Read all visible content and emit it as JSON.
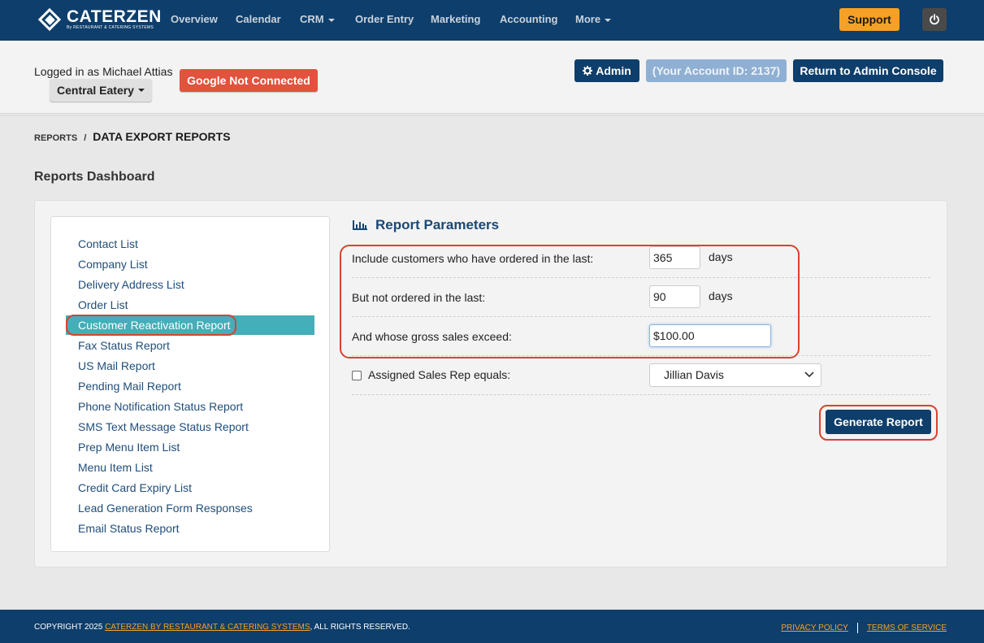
{
  "brand": {
    "name": "CaterZen",
    "sub": "By RESTAURANT & CATERING SYSTEMS"
  },
  "nav": {
    "items": [
      {
        "label": "Overview"
      },
      {
        "label": "Calendar"
      },
      {
        "label": "CRM"
      },
      {
        "label": "Order Entry"
      },
      {
        "label": "Marketing"
      },
      {
        "label": "Accounting"
      },
      {
        "label": "More"
      }
    ],
    "support": "Support",
    "power_icon": "power-icon"
  },
  "account": {
    "logged_in": "Logged in as Michael Attias",
    "location": "Central Eatery",
    "google": "Google Not Connected",
    "admin": "Admin",
    "account_id": "(Your Account ID: 2137)",
    "return": "Return to Admin Console"
  },
  "breadcrumb": {
    "parent": "REPORTS",
    "sep": "/",
    "current": "DATA EXPORT REPORTS"
  },
  "dashboard_title": "Reports Dashboard",
  "reports": {
    "items": [
      "Contact List",
      "Company List",
      "Delivery Address List",
      "Order List",
      "Customer Reactivation Report",
      "Fax Status Report",
      "US Mail Report",
      "Pending Mail Report",
      "Phone Notification Status Report",
      "SMS Text Message Status Report",
      "Prep Menu Item List",
      "Menu Item List",
      "Credit Card Expiry List",
      "Lead Generation Form Responses",
      "Email Status Report"
    ],
    "active": "Customer Reactivation Report"
  },
  "params": {
    "title": "Report Parameters",
    "ordered_label": "Include customers who have ordered in the last:",
    "ordered_value": "365",
    "not_ordered_label": "But not ordered in the last:",
    "not_ordered_value": "90",
    "days": "days",
    "sales_label": "And whose gross sales exceed:",
    "sales_value": "$100.00",
    "rep_label": "Assigned Sales Rep equals:",
    "rep_checked": false,
    "rep_value": "Jillian Davis",
    "generate": "Generate Report"
  },
  "colors": {
    "navy": "#0e3e6b",
    "orange": "#f6a125",
    "teal": "#44aeb9",
    "red": "#e1533e",
    "highlight_ring": "#d9422f"
  },
  "footer": {
    "copyright_prefix": "COPYRIGHT 2025",
    "copyright_link": "CATERZEN BY RESTAURANT & CATERING SYSTEMS",
    "copyright_suffix": ", ALL RIGHTS RESERVED.",
    "privacy": "PRIVACY POLICY",
    "terms": "TERMS OF SERVICE"
  }
}
